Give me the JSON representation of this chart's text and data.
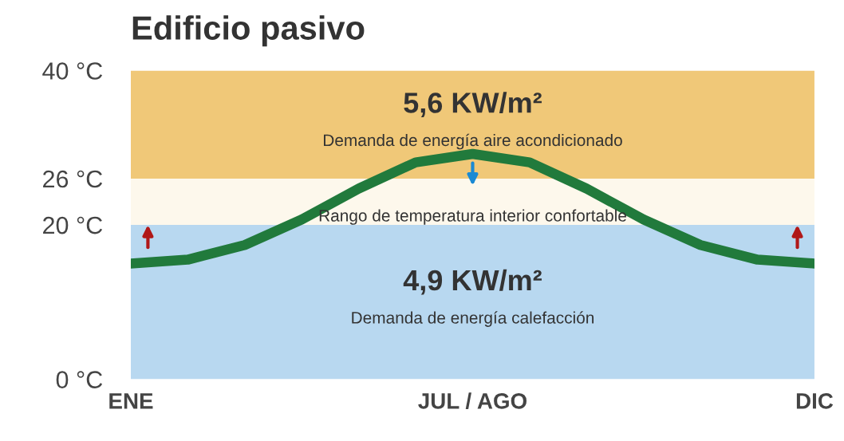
{
  "chart_data": {
    "type": "line",
    "title": "Edificio pasivo",
    "categories": [
      "ENE",
      null,
      null,
      null,
      null,
      null,
      "JUL / AGO",
      null,
      null,
      null,
      null,
      null,
      "DIC"
    ],
    "series": [
      {
        "color": "#217a3c",
        "values": [
          15,
          15.5,
          17.4,
          20.7,
          24.7,
          28.1,
          29.2,
          28.1,
          24.7,
          20.7,
          17.4,
          15.5,
          15
        ]
      }
    ],
    "ylim": [
      0,
      40
    ],
    "yticks": [
      {
        "value": 0,
        "label": "0 °C"
      },
      {
        "value": 20,
        "label": "20 °C"
      },
      {
        "value": 26,
        "label": "26 °C"
      },
      {
        "value": 40,
        "label": "40 °C"
      }
    ],
    "bands": [
      {
        "axis": "y",
        "from": 26,
        "to": 40,
        "label": "5,6 KW/m²",
        "color": "#f0c878"
      },
      {
        "axis": "y",
        "from": 20,
        "to": 26,
        "label": "Rango de temperatura interior confortable",
        "color": "#fdf8ec"
      },
      {
        "axis": "y",
        "from": 0,
        "to": 20,
        "label": "4,9 KW/m²",
        "color": "#b8d8f0"
      }
    ],
    "annotations": [
      "Demanda de energía aire acondicionado",
      null,
      "Demanda de energía calefacción"
    ],
    "grid": false,
    "marker": "none",
    "line_style": "solid"
  }
}
